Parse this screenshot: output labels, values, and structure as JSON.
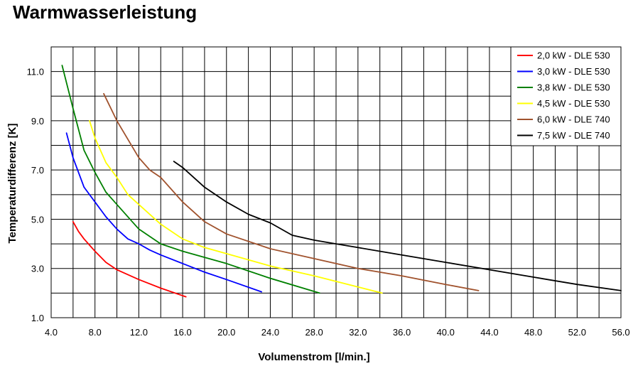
{
  "title": "Warmwasserleistung",
  "chart_data": {
    "type": "line",
    "title": "Warmwasserleistung",
    "xlabel": "Volumenstrom [l/min.]",
    "ylabel": "Temperaturdifferenz [K]",
    "xlim": [
      4.0,
      56.0
    ],
    "ylim": [
      1.0,
      12.0
    ],
    "x_ticks": [
      "4.0",
      "8.0",
      "12.0",
      "16.0",
      "20.0",
      "24.0",
      "28.0",
      "32.0",
      "36.0",
      "40.0",
      "44.0",
      "48.0",
      "52.0",
      "56.0"
    ],
    "y_ticks": [
      "1.0",
      "3.0",
      "5.0",
      "7.0",
      "9.0",
      "11.0"
    ],
    "grid": true,
    "legend_position": "top-right",
    "series": [
      {
        "name": "2,0 kW - DLE 530",
        "color": "#ff0000",
        "x": [
          6.0,
          6.5,
          7.0,
          8.0,
          9.0,
          10.0,
          12.0,
          14.0,
          16.3
        ],
        "y": [
          4.9,
          4.5,
          4.2,
          3.7,
          3.25,
          2.95,
          2.55,
          2.2,
          1.85
        ]
      },
      {
        "name": "3,0 kW - DLE 530",
        "color": "#0000ff",
        "x": [
          5.4,
          6.0,
          7.0,
          8.0,
          9.0,
          10.0,
          11.0,
          12.0,
          13.0,
          14.0,
          16.0,
          18.0,
          20.0,
          23.2
        ],
        "y": [
          8.5,
          7.5,
          6.3,
          5.7,
          5.1,
          4.6,
          4.2,
          4.0,
          3.75,
          3.55,
          3.2,
          2.85,
          2.55,
          2.05
        ]
      },
      {
        "name": "3,8 kW - DLE 530",
        "color": "#008000",
        "x": [
          5.0,
          6.0,
          7.0,
          8.0,
          9.0,
          10.0,
          12.0,
          14.0,
          16.0,
          18.0,
          20.0,
          24.0,
          28.5
        ],
        "y": [
          11.25,
          9.5,
          7.8,
          6.9,
          6.1,
          5.6,
          4.6,
          4.0,
          3.7,
          3.45,
          3.2,
          2.6,
          2.0
        ]
      },
      {
        "name": "4,5 kW - DLE 530",
        "color": "#ffff00",
        "x": [
          7.5,
          8.0,
          9.0,
          10.0,
          11.0,
          12.0,
          14.0,
          16.0,
          18.0,
          20.0,
          24.0,
          28.0,
          34.2
        ],
        "y": [
          9.0,
          8.3,
          7.3,
          6.7,
          6.0,
          5.6,
          4.8,
          4.2,
          3.85,
          3.6,
          3.1,
          2.7,
          2.0
        ]
      },
      {
        "name": "6,0 kW - DLE 740",
        "color": "#a0522d",
        "x": [
          8.8,
          10.0,
          12.0,
          13.0,
          14.0,
          16.0,
          18.0,
          20.0,
          24.0,
          28.0,
          32.0,
          36.0,
          40.0,
          43.0
        ],
        "y": [
          10.1,
          9.0,
          7.5,
          7.0,
          6.7,
          5.7,
          4.9,
          4.4,
          3.8,
          3.4,
          3.0,
          2.7,
          2.35,
          2.1
        ]
      },
      {
        "name": "7,5 kW - DLE 740",
        "color": "#000000",
        "x": [
          15.2,
          16.0,
          18.0,
          20.0,
          22.0,
          24.0,
          26.0,
          28.0,
          30.0,
          32.0,
          36.0,
          40.0,
          44.0,
          48.0,
          52.0,
          56.0
        ],
        "y": [
          7.35,
          7.1,
          6.3,
          5.7,
          5.2,
          4.85,
          4.35,
          4.15,
          4.0,
          3.85,
          3.55,
          3.25,
          2.95,
          2.65,
          2.35,
          2.1
        ]
      }
    ]
  }
}
